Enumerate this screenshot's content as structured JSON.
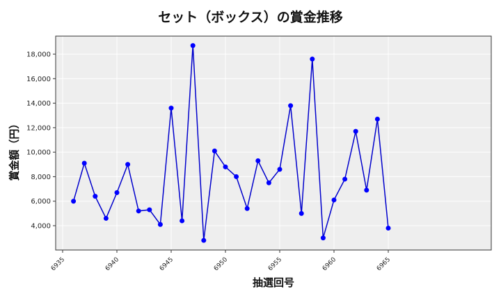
{
  "chart_data": {
    "type": "line",
    "title": "セット（ボックス）の賞金推移",
    "xlabel": "抽選回号",
    "ylabel": "賞金額（円）",
    "x": [
      6936,
      6937,
      6938,
      6939,
      6940,
      6941,
      6942,
      6943,
      6944,
      6945,
      6946,
      6947,
      6948,
      6949,
      6950,
      6951,
      6952,
      6953,
      6954,
      6955,
      6956,
      6957,
      6958,
      6959,
      6960,
      6961,
      6962,
      6963,
      6964,
      6965
    ],
    "series": [
      {
        "name": "賞金額",
        "color": "#0000cc",
        "marker_color": "#0000ff",
        "values": [
          6000,
          9100,
          6400,
          4600,
          6700,
          9000,
          5200,
          5300,
          4100,
          13600,
          4400,
          18700,
          2800,
          10100,
          8800,
          8000,
          5400,
          9300,
          7500,
          8600,
          13800,
          5000,
          17600,
          3000,
          6100,
          7800,
          11700,
          6900,
          12700,
          3800
        ]
      }
    ],
    "xticks": [
      6935,
      6940,
      6945,
      6950,
      6955,
      6960,
      6965
    ],
    "xtick_labels": [
      "6935",
      "6940",
      "6945",
      "6950",
      "6955",
      "6960",
      "6965"
    ],
    "yticks": [
      4000,
      6000,
      8000,
      10000,
      12000,
      14000,
      16000,
      18000
    ],
    "ytick_labels": [
      "4,000",
      "6,000",
      "8,000",
      "10,000",
      "12,000",
      "14,000",
      "16,000",
      "18,000"
    ],
    "xlim": [
      6934.2,
      6966.5
    ],
    "ylim": [
      2000,
      19400
    ],
    "grid": true,
    "background": "#eeeeee"
  }
}
